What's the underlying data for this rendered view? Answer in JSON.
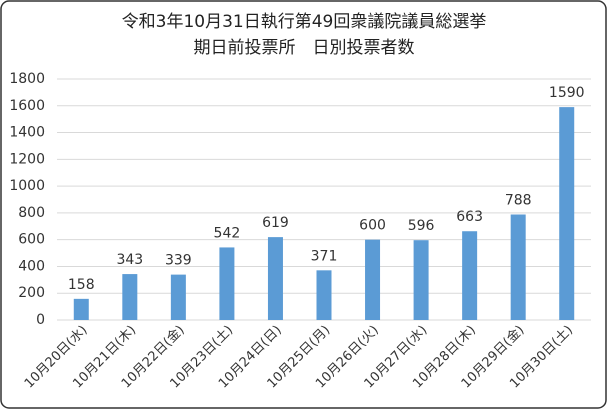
{
  "chart_data": {
    "type": "bar",
    "title": [
      "令和3年10月31日執行第49回衆議院議員総選挙",
      "期日前投票所　日別投票者数"
    ],
    "categories": [
      "10月20日(水)",
      "10月21日(木)",
      "10月22日(金)",
      "10月23日(土)",
      "10月24日(日)",
      "10月25日(月)",
      "10月26日(火)",
      "10月27日(水)",
      "10月28日(木)",
      "10月29日(金)",
      "10月30日(土)"
    ],
    "values": [
      158,
      343,
      339,
      542,
      619,
      371,
      600,
      596,
      663,
      788,
      1590
    ],
    "color": "#5b9bd5",
    "ylim": [
      0,
      1800
    ],
    "yticks": [
      0,
      200,
      400,
      600,
      800,
      1000,
      1200,
      1400,
      1600,
      1800
    ],
    "grid": true
  }
}
